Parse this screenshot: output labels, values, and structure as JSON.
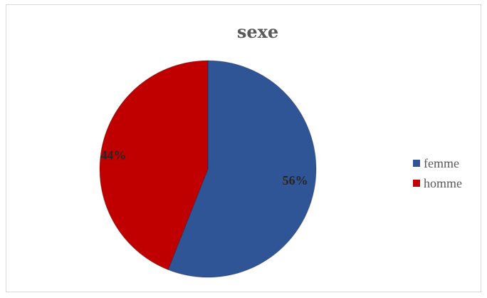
{
  "chart_data": {
    "type": "pie",
    "title": "sexe",
    "slices": [
      {
        "label": "femme",
        "value": 56,
        "display": "56%",
        "color": "#2f5597"
      },
      {
        "label": "homme",
        "value": 44,
        "display": "44%",
        "color": "#c00000"
      }
    ],
    "legend": {
      "position": "right"
    }
  }
}
